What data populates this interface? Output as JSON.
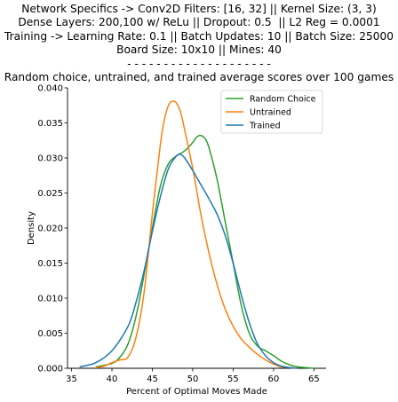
{
  "chart_data": {
    "type": "line",
    "title_lines": [
      "Network Specifics -> Conv2D Filters: [16, 32] || Kernel Size: (3, 3)",
      "Dense Layers: 200,100 w/ ReLu || Dropout: 0.5  || L2 Reg = 0.0001",
      "Training -> Learning Rate: 0.1 || Batch Updates: 10 || Batch Size: 25000",
      "Board Size: 10x10 || Mines: 40",
      "- - - - - - - - - - - - - - - - - - - -",
      "Random choice, untrained, and trained average scores over 100 games"
    ],
    "xlabel": "Percent of Optimal Moves Made",
    "ylabel": "Density",
    "xlim": [
      34.5,
      66.5
    ],
    "ylim": [
      0,
      0.04
    ],
    "xticks": [
      35,
      40,
      45,
      50,
      55,
      60,
      65
    ],
    "yticks": [
      "0.000",
      "0.005",
      "0.010",
      "0.015",
      "0.020",
      "0.025",
      "0.030",
      "0.035",
      "0.040"
    ],
    "grid": false,
    "legend_position": "top-right",
    "series": [
      {
        "name": "Random Choice",
        "color": "#2ca02c",
        "x": [
          38,
          40,
          41,
          42,
          43,
          44,
          45,
          46,
          47,
          48,
          49,
          50,
          50.5,
          51,
          51.5,
          52,
          53,
          54,
          55,
          56,
          57,
          58,
          59,
          60,
          61,
          62,
          63,
          64,
          65
        ],
        "y": [
          0.0002,
          0.0007,
          0.0016,
          0.0035,
          0.0075,
          0.0135,
          0.02,
          0.026,
          0.0292,
          0.0303,
          0.031,
          0.0322,
          0.033,
          0.0332,
          0.0328,
          0.0315,
          0.027,
          0.021,
          0.015,
          0.009,
          0.005,
          0.0032,
          0.0025,
          0.0018,
          0.001,
          0.0005,
          0.0002,
          0.0001,
          0.0
        ]
      },
      {
        "name": "Untrained",
        "color": "#ff7f0e",
        "x": [
          38,
          39,
          40,
          41,
          42,
          43,
          44,
          45,
          46,
          46.5,
          47,
          47.5,
          48,
          48.5,
          49,
          50,
          51,
          52,
          53,
          54,
          55,
          56,
          57,
          58,
          59,
          60,
          61,
          62,
          63
        ],
        "y": [
          0.0001,
          0.0003,
          0.0008,
          0.0012,
          0.0016,
          0.0045,
          0.011,
          0.022,
          0.032,
          0.0355,
          0.0375,
          0.0381,
          0.0378,
          0.0365,
          0.034,
          0.0285,
          0.022,
          0.0165,
          0.012,
          0.0085,
          0.006,
          0.0042,
          0.003,
          0.002,
          0.0012,
          0.0006,
          0.0002,
          0.0001,
          0.0
        ]
      },
      {
        "name": "Trained",
        "color": "#1f77b4",
        "x": [
          36,
          38,
          40,
          42,
          43,
          44,
          45,
          46,
          47,
          48,
          48.5,
          49,
          50,
          51,
          52,
          53,
          54,
          55,
          56,
          57,
          58,
          59,
          60,
          61,
          62,
          63
        ],
        "y": [
          0.0002,
          0.0008,
          0.0025,
          0.006,
          0.0095,
          0.014,
          0.0195,
          0.0245,
          0.0285,
          0.0303,
          0.0305,
          0.03,
          0.0282,
          0.0262,
          0.0242,
          0.022,
          0.019,
          0.015,
          0.0105,
          0.0065,
          0.0035,
          0.0018,
          0.0008,
          0.0003,
          0.0001,
          0.0
        ]
      }
    ]
  }
}
